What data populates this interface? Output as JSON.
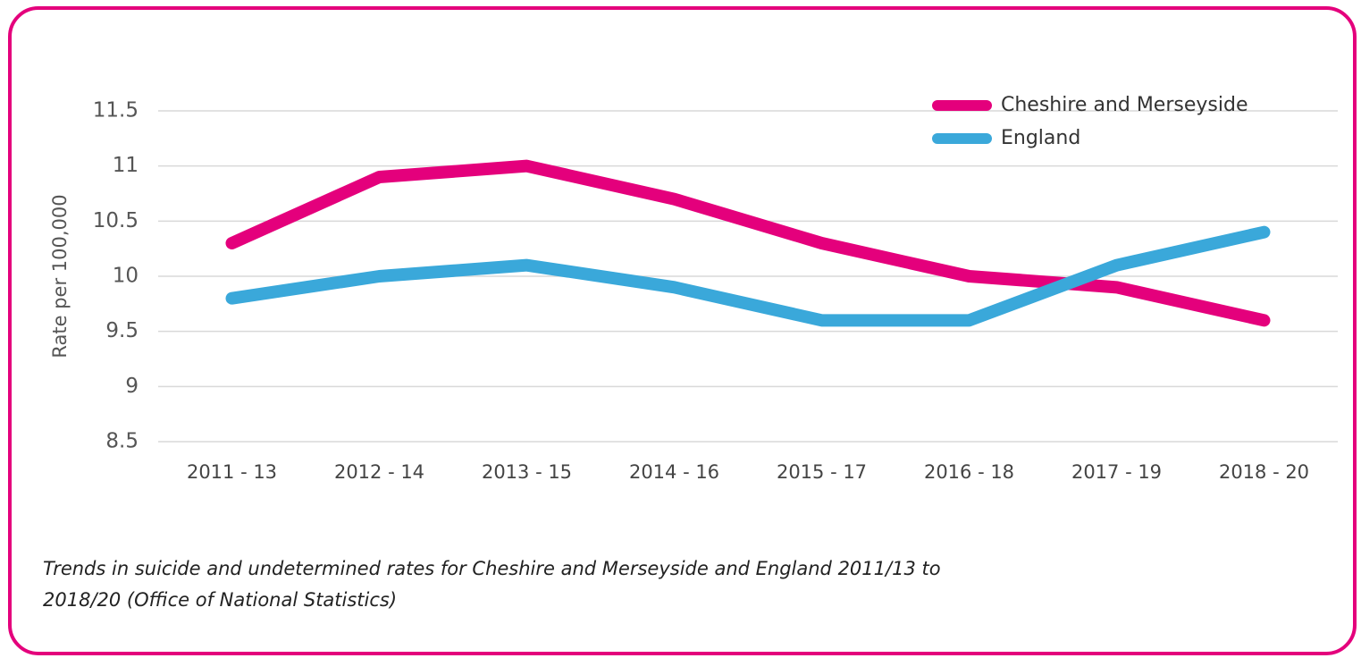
{
  "chart_data": {
    "type": "line",
    "categories": [
      "2011 - 13",
      "2012 - 14",
      "2013 - 15",
      "2014 - 16",
      "2015 - 17",
      "2016 - 18",
      "2017 - 19",
      "2018 - 20"
    ],
    "series": [
      {
        "name": "Cheshire and Merseyside",
        "color": "#e4007c",
        "values": [
          10.3,
          10.9,
          11.0,
          10.7,
          10.3,
          10.0,
          9.9,
          9.6
        ]
      },
      {
        "name": "England",
        "color": "#3aa8da",
        "values": [
          9.8,
          10.0,
          10.1,
          9.9,
          9.6,
          9.6,
          10.1,
          10.4
        ]
      }
    ],
    "y_label": "Rate per 100,000",
    "ylim": [
      8.5,
      11.5
    ],
    "yticks": [
      8.5,
      9,
      9.5,
      10,
      10.5,
      11,
      11.5
    ],
    "grid": true,
    "legend": "top-right",
    "caption": [
      "Trends in suicide and undetermined rates for Cheshire and Merseyside and England 2011/13 to",
      "2018/20 (Office of National Statistics)"
    ]
  }
}
